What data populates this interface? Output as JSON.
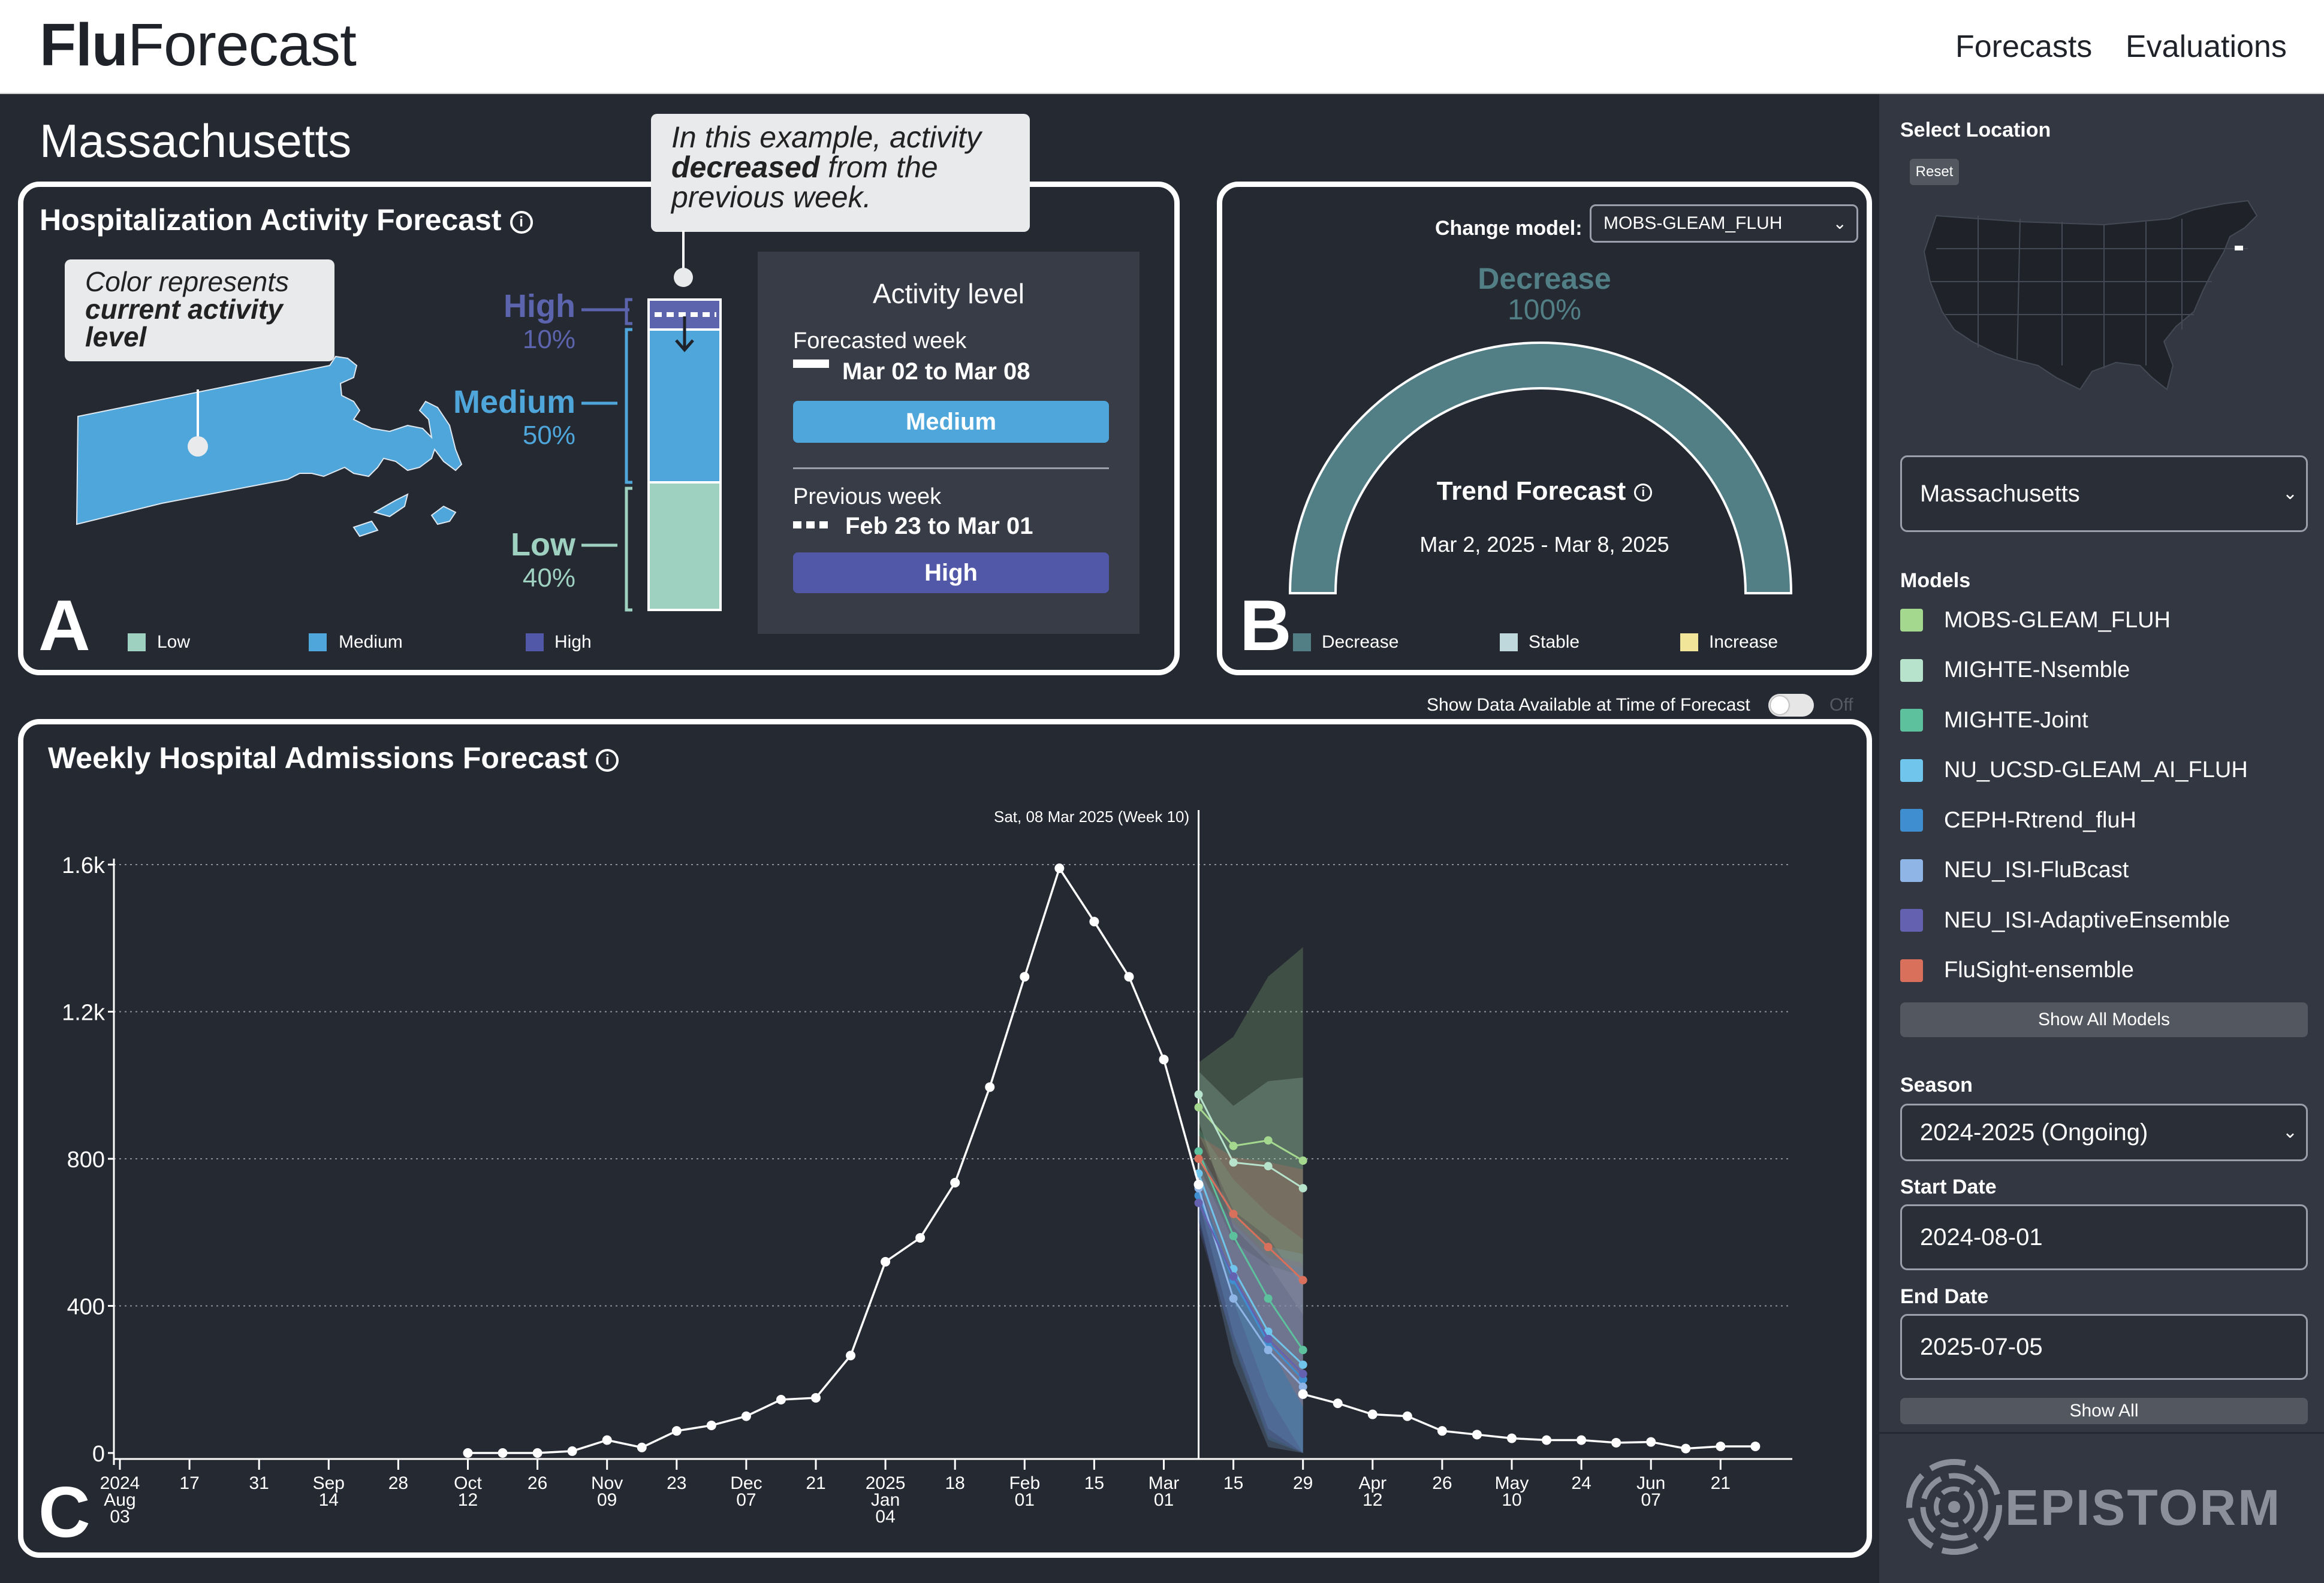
{
  "header": {
    "brand_bold": "Flu",
    "brand_rest": "Forecast",
    "nav": [
      "Forecasts",
      "Evaluations"
    ]
  },
  "location_title": "Massachusetts",
  "panel_a": {
    "title": "Hospitalization Activity Forecast",
    "callout_map_1": "Color represents",
    "callout_map_2": "current activity",
    "callout_map_3": "level",
    "callout_top_1": "In this example, activity",
    "callout_top_2a": "decreased",
    "callout_top_2b": " from the",
    "callout_top_3": "previous week.",
    "levels": [
      {
        "label": "High",
        "pct": "10%",
        "color": "#5d64ae"
      },
      {
        "label": "Medium",
        "pct": "50%",
        "color": "#4ea6db"
      },
      {
        "label": "Low",
        "pct": "40%",
        "color": "#9fd1c1"
      }
    ],
    "card_title": "Activity level",
    "forecasted_label": "Forecasted week",
    "forecasted_range": "Mar 02 to Mar 08",
    "forecasted_level": "Medium",
    "previous_label": "Previous week",
    "previous_range": "Feb 23 to Mar 01",
    "previous_level": "High",
    "legend": [
      "Low",
      "Medium",
      "High"
    ],
    "letter": "A"
  },
  "panel_b": {
    "change_model_label": "Change model:",
    "model_selected": "MOBS-GLEAM_FLUH",
    "direction": "Decrease",
    "pct": "100%",
    "gauge_fraction_decrease": 1.0,
    "trend_title": "Trend Forecast",
    "date_range": "Mar 2, 2025 - Mar 8, 2025",
    "legend": [
      "Decrease",
      "Stable",
      "Increase"
    ],
    "legend_colors": [
      "#527f86",
      "#bfd8dc",
      "#f0e599"
    ],
    "letter": "B"
  },
  "toggle": {
    "label": "Show Data Available at Time of Forecast",
    "state": "Off"
  },
  "panel_c": {
    "title": "Weekly Hospital Admissions Forecast",
    "marker_label": "Sat, 08 Mar 2025 (Week 10)",
    "letter": "C"
  },
  "chart_data": {
    "type": "line",
    "title": "Weekly Hospital Admissions Forecast",
    "ylim": [
      0,
      1600
    ],
    "yticks": [
      "0",
      "400",
      "800",
      "1.2k",
      "1.6k"
    ],
    "xticks": [
      [
        "2024",
        "Aug",
        "03"
      ],
      [
        "17"
      ],
      [
        "31"
      ],
      [
        "Sep",
        "14"
      ],
      [
        "28"
      ],
      [
        "Oct",
        "12"
      ],
      [
        "26"
      ],
      [
        "Nov",
        "09"
      ],
      [
        "23"
      ],
      [
        "Dec",
        "07"
      ],
      [
        "21"
      ],
      [
        "2025",
        "Jan",
        "04"
      ],
      [
        "18"
      ],
      [
        "Feb",
        "01"
      ],
      [
        "15"
      ],
      [
        "Mar",
        "01"
      ],
      [
        "15"
      ],
      [
        "29"
      ],
      [
        "Apr",
        "12"
      ],
      [
        "26"
      ],
      [
        "May",
        "10"
      ],
      [
        "24"
      ],
      [
        "Jun",
        "07"
      ],
      [
        "21"
      ]
    ],
    "observed": [
      {
        "week": 10,
        "v": 0
      },
      {
        "week": 11,
        "v": 0
      },
      {
        "week": 12,
        "v": 0
      },
      {
        "week": 13,
        "v": 5
      },
      {
        "week": 14,
        "v": 35
      },
      {
        "week": 15,
        "v": 15
      },
      {
        "week": 16,
        "v": 60
      },
      {
        "week": 17,
        "v": 75
      },
      {
        "week": 18,
        "v": 100
      },
      {
        "week": 19,
        "v": 145
      },
      {
        "week": 20,
        "v": 150
      },
      {
        "week": 21,
        "v": 265
      },
      {
        "week": 22,
        "v": 520
      },
      {
        "week": 23,
        "v": 585
      },
      {
        "week": 24,
        "v": 735
      },
      {
        "week": 25,
        "v": 995
      },
      {
        "week": 26,
        "v": 1295
      },
      {
        "week": 27,
        "v": 1590
      },
      {
        "week": 28,
        "v": 1445
      },
      {
        "week": 29,
        "v": 1295
      },
      {
        "week": 30,
        "v": 1070
      },
      {
        "week": 31,
        "v": 730
      },
      {
        "week": 34,
        "v": 160
      },
      {
        "week": 35,
        "v": 135
      },
      {
        "week": 36,
        "v": 105
      },
      {
        "week": 37,
        "v": 100
      },
      {
        "week": 38,
        "v": 60
      },
      {
        "week": 39,
        "v": 50
      },
      {
        "week": 40,
        "v": 40
      },
      {
        "week": 41,
        "v": 35
      },
      {
        "week": 42,
        "v": 35
      },
      {
        "week": 43,
        "v": 28
      },
      {
        "week": 44,
        "v": 30
      },
      {
        "week": 45,
        "v": 12
      },
      {
        "week": 46,
        "v": 18
      },
      {
        "week": 47,
        "v": 18
      }
    ],
    "series": [
      {
        "name": "MOBS-GLEAM_FLUH",
        "color": "#a4d88f",
        "values": [
          940,
          835,
          850,
          795
        ]
      },
      {
        "name": "MIGHTE-Nsemble",
        "color": "#b7e3cd",
        "values": [
          975,
          790,
          780,
          720
        ]
      },
      {
        "name": "MIGHTE-Joint",
        "color": "#5cc19c",
        "values": [
          820,
          590,
          420,
          280
        ]
      },
      {
        "name": "NU_UCSD-GLEAM_AI_FLUH",
        "color": "#6fc5ec",
        "values": [
          760,
          500,
          330,
          240
        ]
      },
      {
        "name": "CEPH-Rtrend_fluH",
        "color": "#3f8fd0",
        "values": [
          700,
          470,
          300,
          200
        ]
      },
      {
        "name": "NEU_ISI-FluBcast",
        "color": "#8fb5e6",
        "values": [
          720,
          420,
          280,
          180
        ]
      },
      {
        "name": "NEU_ISI-AdaptiveEnsemble",
        "color": "#6462b0",
        "values": [
          680,
          480,
          310,
          215
        ]
      },
      {
        "name": "FluSight-ensemble",
        "color": "#d9705c",
        "values": [
          800,
          650,
          560,
          470
        ]
      }
    ]
  },
  "sidebar": {
    "select_location_label": "Select Location",
    "reset_label": "Reset",
    "location_value": "Massachusetts",
    "models_label": "Models",
    "models": [
      {
        "name": "MOBS-GLEAM_FLUH",
        "color": "#a4d88f"
      },
      {
        "name": "MIGHTE-Nsemble",
        "color": "#b7e3cd"
      },
      {
        "name": "MIGHTE-Joint",
        "color": "#5cc19c"
      },
      {
        "name": "NU_UCSD-GLEAM_AI_FLUH",
        "color": "#6fc5ec"
      },
      {
        "name": "CEPH-Rtrend_fluH",
        "color": "#3f8fd0"
      },
      {
        "name": "NEU_ISI-FluBcast",
        "color": "#8fb5e6"
      },
      {
        "name": "NEU_ISI-AdaptiveEnsemble",
        "color": "#6462b0"
      },
      {
        "name": "FluSight-ensemble",
        "color": "#d9705c"
      }
    ],
    "show_all_models_label": "Show All Models",
    "season_label": "Season",
    "season_value": "2024-2025 (Ongoing)",
    "start_date_label": "Start Date",
    "start_date_value": "2024-08-01",
    "end_date_label": "End Date",
    "end_date_value": "2025-07-05",
    "show_all_label": "Show All",
    "logo_text": "EPISTORM"
  }
}
